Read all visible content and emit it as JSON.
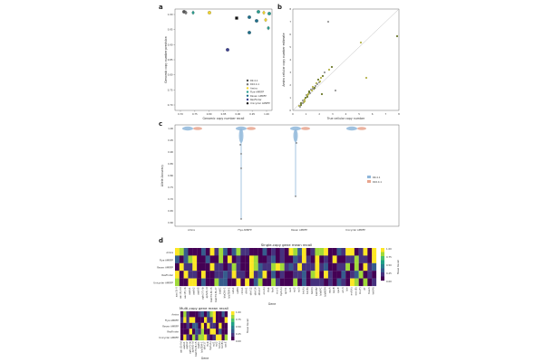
{
  "panels": {
    "a": {
      "letter": "a",
      "xlabel": "Genomic copy number recall",
      "ylabel": "Genomic copy number precision",
      "xticks": [
        "0.70",
        "0.75",
        "0.80",
        "0.85",
        "0.90",
        "0.95",
        "1.00"
      ],
      "yticks": [
        "0.70",
        "0.75",
        "0.80",
        "0.85",
        "0.90",
        "0.95",
        "1.00"
      ],
      "legend": [
        "R9.4.1",
        "R10.4.1",
        "Amira",
        "Flye AMRFP",
        "Raven AMRFP",
        "ResFinder",
        "Unicycler AMRFP"
      ],
      "legend_colors": [
        "#555555",
        "#777777",
        "#f2d52b",
        "#2a9d8f",
        "#1f6f8b",
        "#3b3f8f",
        "#111111"
      ]
    },
    "b": {
      "letter": "b",
      "xlabel": "True cellular copy number",
      "ylabel": "Amira cellular copy number estimate",
      "xticks": [
        "0",
        "1",
        "2",
        "3",
        "4",
        "5",
        "6",
        "7",
        "8"
      ],
      "yticks": [
        "0",
        "1",
        "2",
        "3",
        "4",
        "5",
        "6",
        "7",
        "8"
      ]
    },
    "c": {
      "letter": "c",
      "ylabel": "Allele Accuracy",
      "yticks": [
        "1.00",
        "0.95",
        "0.90",
        "0.85",
        "0.80",
        "0.75",
        "0.70",
        "0.65",
        "0.60"
      ],
      "categories": [
        "Amira",
        "Flye AMRFP",
        "Raven AMRFP",
        "Unicycler AMRFP"
      ],
      "legend": [
        "R9.4.1",
        "R10.4.1"
      ],
      "legend_colors": [
        "#8fb7da",
        "#e8a58e"
      ]
    },
    "d": {
      "letter": "d",
      "title1": "Single-copy gene mean recall",
      "title2": "Multi-copy gene mean recall",
      "rows": [
        "Amira",
        "Flye AMRFP",
        "Raven AMRFP",
        "ResFinder",
        "Unicycler AMRFP"
      ],
      "xlabel": "Gene",
      "cbar_label": "Mean Recall",
      "cbar_ticks": [
        "1.00",
        "0.75",
        "0.50",
        "0.25",
        "0.00"
      ],
      "genes1": [
        "aac(3)-II",
        "aac(3)-IId",
        "aac(6')-Ib",
        "aadA1",
        "aadA2",
        "aadA5",
        "aph(3'')-Ib",
        "aph(6)-Id",
        "blaCTX-M-15",
        "blaCTX-M-27",
        "blaEC",
        "blaOXA-1",
        "blaTEM-1",
        "catA1",
        "catB3",
        "cmlA1",
        "dfrA1",
        "dfrA12",
        "dfrA14",
        "dfrA17",
        "ere(A)",
        "floR",
        "fosA",
        "mcr-1",
        "mph(A)",
        "qnrS1",
        "sul1",
        "sul2",
        "sul3",
        "tet(A)",
        "tet(B)",
        "tet(D)",
        "blaSHV",
        "blaKPC",
        "blaNDM",
        "oqxA",
        "oqxB",
        "qacE",
        "arr-3",
        "ble",
        "mdf(A)",
        "erm(B)",
        "lnu(F)",
        "cfr",
        "fosA3",
        "tet(M)"
      ],
      "genes2": [
        "aac(3)-IId",
        "aadA1",
        "aadA2",
        "aph(3'')-Ib",
        "aph(6)-Id",
        "blaCTX-M-15",
        "blaEC",
        "blaTEM-1",
        "dfrA17",
        "floR",
        "mph(A)",
        "sul1",
        "sul2",
        "tet(A)",
        "tet(B)",
        "qacE"
      ]
    }
  }
}
